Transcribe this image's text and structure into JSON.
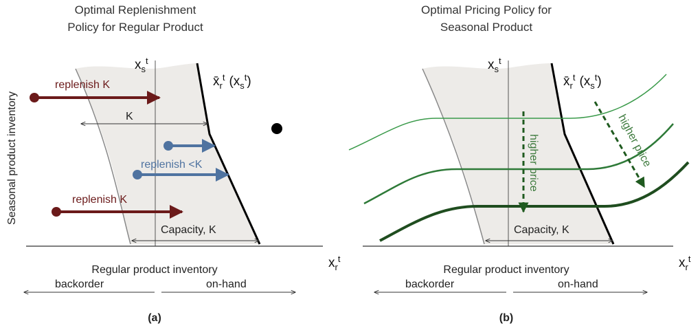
{
  "panels": [
    {
      "title": [
        "Optimal Replenishment",
        "Policy for Regular Product"
      ],
      "y_axis_label": "Seasonal product inventory",
      "seasonal_axis": {
        "base": "x",
        "sub": "s",
        "sup": "t"
      },
      "threshold": {
        "base": "x̄",
        "sub": "r",
        "sup": "t",
        "open": "(x",
        "arg_sub": "s",
        "arg_sup": "t",
        "close": ")"
      },
      "regular_axis": {
        "base": "x",
        "sub": "r",
        "sup": "t"
      },
      "annotations": [
        "replenish K",
        "K",
        "replenish <K",
        "replenish K",
        "Capacity, K"
      ],
      "x_axis_label": "Regular product inventory",
      "backorder": "backorder",
      "on_hand": "on-hand",
      "label": "(a)"
    },
    {
      "title": [
        "Optimal Pricing Policy for",
        "Seasonal Product"
      ],
      "seasonal_axis": {
        "base": "x",
        "sub": "s",
        "sup": "t"
      },
      "threshold": {
        "base": "x̄",
        "sub": "r",
        "sup": "t",
        "open": "(x",
        "arg_sub": "s",
        "arg_sup": "t",
        "close": ")"
      },
      "regular_axis": {
        "base": "x",
        "sub": "r",
        "sup": "t"
      },
      "annotations": [
        "higher price",
        "higher price",
        "Capacity, K"
      ],
      "x_axis_label": "Regular product inventory",
      "backorder": "backorder",
      "on_hand": "on-hand",
      "label": "(b)"
    }
  ]
}
